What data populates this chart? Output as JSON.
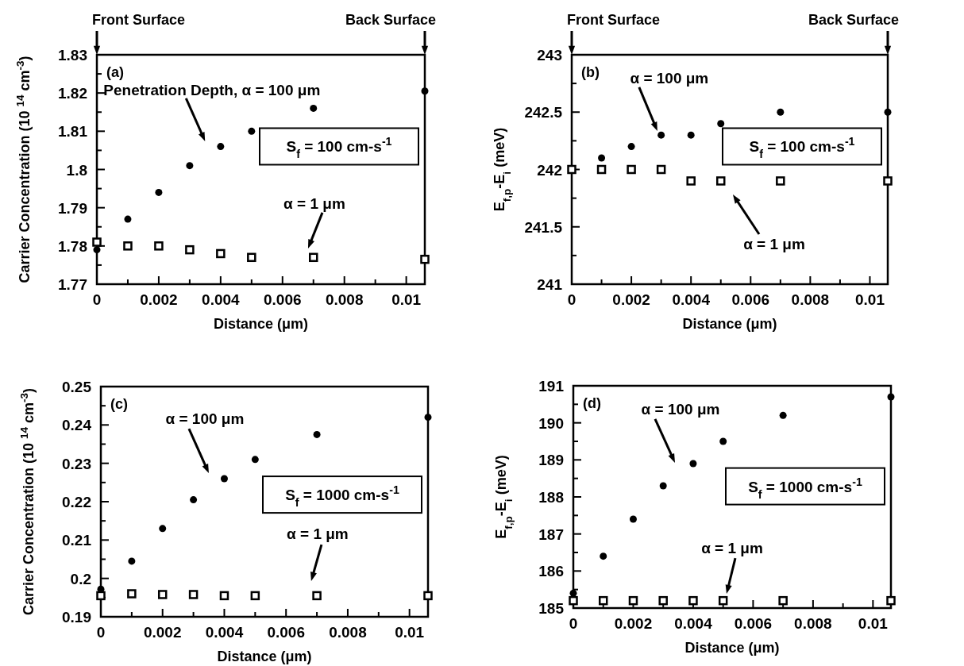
{
  "chart_data": [
    {
      "type": "scatter",
      "xlabel": "Distance (μm)",
      "ylabel": "Carrier Concentration (10 $^{14}$ cm$^{-3}$)",
      "xlim": [
        0,
        0.0106
      ],
      "xticks": [
        0,
        {
          "value": 0.001,
          "label": null
        },
        0.002,
        {
          "value": 0.003,
          "label": null
        },
        0.004,
        {
          "value": 0.005,
          "label": null
        },
        0.006,
        {
          "value": 0.007,
          "label": null
        },
        0.008,
        {
          "value": 0.009,
          "label": null
        },
        0.01
      ],
      "ylim": [
        1.77,
        1.83
      ],
      "yticks": [
        1.77,
        {
          "value": 1.775,
          "label": null
        },
        1.78,
        {
          "value": 1.785,
          "label": null
        },
        1.79,
        {
          "value": 1.795,
          "label": null
        },
        1.8,
        {
          "value": 1.805,
          "label": null
        },
        1.81,
        {
          "value": 1.815,
          "label": null
        },
        1.82,
        {
          "value": 1.825,
          "label": null
        },
        1.83
      ],
      "x": [
        0,
        0.001,
        0.002,
        0.003,
        0.004,
        0.005,
        0.007,
        0.0106
      ],
      "series": [
        {
          "color": "#000000",
          "marker": "circle",
          "values": [
            1.779,
            1.787,
            1.794,
            1.801,
            1.806,
            1.81,
            1.816,
            1.8205
          ]
        },
        {
          "color": "#000000",
          "marker": "square",
          "values": [
            1.781,
            1.78,
            1.78,
            1.779,
            1.778,
            1.777,
            1.777,
            1.7765
          ]
        }
      ],
      "annotations": [
        "(a)",
        "S$_{f}$ = 100 cm-s$^{-1}$",
        "Penetration Depth,   α = 100 μm",
        "α = 1 μm",
        "Front Surface",
        "Back Surface"
      ]
    },
    {
      "type": "scatter",
      "xlabel": "Distance (μm)",
      "ylabel": "E$_{f,p}$-E$_{i}$ (meV)",
      "xlim": [
        0,
        0.0106
      ],
      "xticks": [
        0,
        {
          "value": 0.001,
          "label": null
        },
        0.002,
        {
          "value": 0.003,
          "label": null
        },
        0.004,
        {
          "value": 0.005,
          "label": null
        },
        0.006,
        {
          "value": 0.007,
          "label": null
        },
        0.008,
        {
          "value": 0.009,
          "label": null
        },
        0.01
      ],
      "ylim": [
        241,
        243
      ],
      "yticks": [
        241,
        {
          "value": 241.25,
          "label": null
        },
        241.5,
        {
          "value": 241.75,
          "label": null
        },
        242,
        {
          "value": 242.25,
          "label": null
        },
        242.5,
        {
          "value": 242.75,
          "label": null
        },
        243
      ],
      "x": [
        0,
        0.001,
        0.002,
        0.003,
        0.004,
        0.005,
        0.007,
        0.0106
      ],
      "series": [
        {
          "color": "#000000",
          "marker": "circle",
          "values": [
            null,
            242.1,
            242.2,
            242.3,
            242.3,
            242.4,
            242.5,
            242.5
          ]
        },
        {
          "color": "#000000",
          "marker": "square",
          "values": [
            242,
            242,
            242,
            242,
            241.9,
            241.9,
            241.9,
            241.9
          ]
        }
      ],
      "annotations": [
        "(b)",
        "S$_{f}$ = 100 cm-s$^{-1}$",
        "α = 100 μm",
        "α = 1 μm",
        "Front Surface",
        "Back Surface"
      ]
    },
    {
      "type": "scatter",
      "xlabel": "Distance (μm)",
      "ylabel": "Carrier Concentration (10 $^{14}$ cm$^{-3}$)",
      "xlim": [
        0,
        0.0106
      ],
      "xticks": [
        0,
        {
          "value": 0.001,
          "label": null
        },
        0.002,
        {
          "value": 0.003,
          "label": null
        },
        0.004,
        {
          "value": 0.005,
          "label": null
        },
        0.006,
        {
          "value": 0.007,
          "label": null
        },
        0.008,
        {
          "value": 0.009,
          "label": null
        },
        0.01
      ],
      "ylim": [
        0.19,
        0.25
      ],
      "yticks": [
        0.19,
        {
          "value": 0.195,
          "label": null
        },
        0.2,
        {
          "value": 0.205,
          "label": null
        },
        0.21,
        {
          "value": 0.215,
          "label": null
        },
        0.22,
        {
          "value": 0.225,
          "label": null
        },
        0.23,
        {
          "value": 0.235,
          "label": null
        },
        0.24,
        {
          "value": 0.245,
          "label": null
        },
        0.25
      ],
      "x": [
        0,
        0.001,
        0.002,
        0.003,
        0.004,
        0.005,
        0.007,
        0.0106
      ],
      "series": [
        {
          "color": "#000000",
          "marker": "circle",
          "values": [
            0.1972,
            0.2045,
            0.213,
            0.2205,
            0.226,
            0.231,
            0.2375,
            0.242
          ]
        },
        {
          "color": "#000000",
          "marker": "square",
          "values": [
            0.1955,
            0.196,
            0.1958,
            0.1958,
            0.1955,
            0.1955,
            0.1955,
            0.1955
          ]
        }
      ],
      "annotations": [
        "(c)",
        "S$_{f}$ = 1000 cm-s$^{-1}$",
        "α = 100 μm",
        "α = 1 μm"
      ]
    },
    {
      "type": "scatter",
      "xlabel": "Distance (μm)",
      "ylabel": "E$_{f,p}$-E$_{i}$ (meV)",
      "xlim": [
        0,
        0.0106
      ],
      "xticks": [
        0,
        {
          "value": 0.001,
          "label": null
        },
        0.002,
        {
          "value": 0.003,
          "label": null
        },
        0.004,
        {
          "value": 0.005,
          "label": null
        },
        0.006,
        {
          "value": 0.007,
          "label": null
        },
        0.008,
        {
          "value": 0.009,
          "label": null
        },
        0.01
      ],
      "ylim": [
        185,
        191
      ],
      "yticks": [
        185,
        {
          "value": 185.5,
          "label": null
        },
        186,
        {
          "value": 186.5,
          "label": null
        },
        187,
        {
          "value": 187.5,
          "label": null
        },
        188,
        {
          "value": 188.5,
          "label": null
        },
        189,
        {
          "value": 189.5,
          "label": null
        },
        190,
        {
          "value": 190.5,
          "label": null
        },
        191
      ],
      "x": [
        0,
        0.001,
        0.002,
        0.003,
        0.004,
        0.005,
        0.007,
        0.0106
      ],
      "series": [
        {
          "color": "#000000",
          "marker": "circle",
          "values": [
            185.4,
            186.4,
            187.4,
            188.3,
            188.9,
            189.5,
            190.2,
            190.7
          ]
        },
        {
          "color": "#000000",
          "marker": "square",
          "values": [
            185.2,
            185.2,
            185.2,
            185.2,
            185.2,
            185.2,
            185.2,
            185.2
          ]
        }
      ],
      "annotations": [
        "(d)",
        "S$_{f}$ = 1000 cm-s$^{-1}$",
        "α = 100 μm",
        "α = 1 μm"
      ]
    }
  ]
}
